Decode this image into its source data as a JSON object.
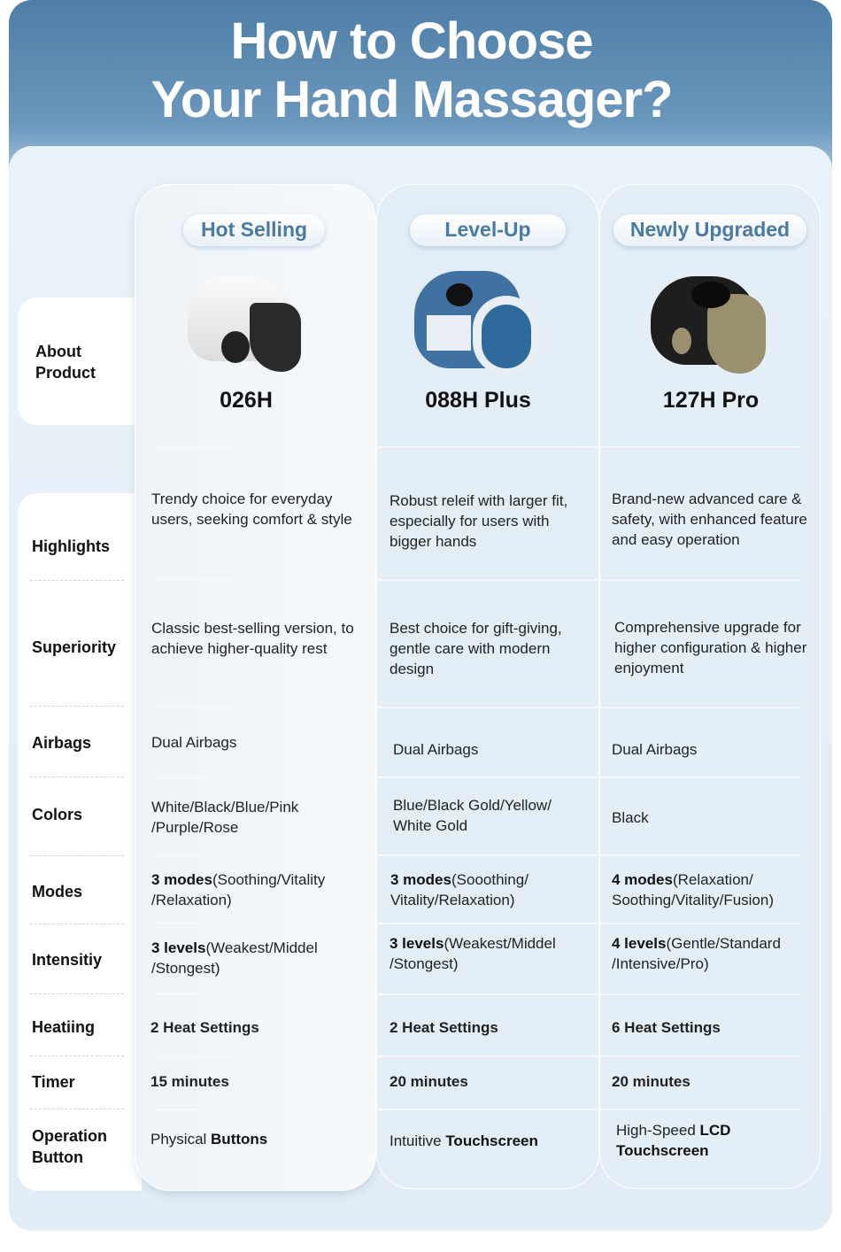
{
  "title": [
    "How to Choose",
    "Your Hand Massager?"
  ],
  "products": [
    {
      "badge": "Hot Selling",
      "model": "026H"
    },
    {
      "badge": "Level-Up",
      "model": "088H Plus"
    },
    {
      "badge": "Newly Upgraded",
      "model": "127H Pro"
    }
  ],
  "row_labels": {
    "about": "About Product",
    "highlights": "Highlights",
    "superiority": "Superiority",
    "airbags": "Airbags",
    "colors": "Colors",
    "modes": "Modes",
    "intensity": "Intensitiy",
    "heating": "Heatiing",
    "timer": "Timer",
    "operation": "Operation Button"
  },
  "cells": {
    "highlights": [
      "Trendy choice for everyday users, seeking comfort & style",
      "Robust releif with larger fit, especially for users with bigger hands",
      "Brand-new advanced care & safety, with enhanced feature and easy operation"
    ],
    "superiority": [
      "Classic best-selling version, to achieve higher-quality rest",
      "Best choice for gift-giving, gentle care with modern design",
      "Comprehensive upgrade for higher configuration & higher enjoyment"
    ],
    "airbags": [
      "Dual Airbags",
      "Dual Airbags",
      "Dual Airbags"
    ],
    "colors": [
      "White/Black/Blue/Pink /Purple/Rose",
      "Blue/Black Gold/Yellow/ White Gold",
      "Black"
    ],
    "modes": [
      {
        "b": "3 modes",
        "t": "(Soothing/Vitality /Relaxation)"
      },
      {
        "b": "3 modes",
        "t": "(Sooothing/ Vitality/Relaxation)"
      },
      {
        "b": "4 modes",
        "t": "(Relaxation/ Soothing/Vitality/Fusion)"
      }
    ],
    "intensity": [
      {
        "b": "3 levels",
        "t": "(Weakest/Middel /Stongest)"
      },
      {
        "b": "3 levels",
        "t": "(Weakest/Middel /Stongest)"
      },
      {
        "b": "4 levels",
        "t": "(Gentle/Standard /Intensive/Pro)"
      }
    ],
    "heating": [
      "2 Heat Settings",
      "2 Heat Settings",
      "6 Heat Settings"
    ],
    "timer": [
      "15 minutes",
      "20 minutes",
      "20 minutes"
    ],
    "operation": [
      {
        "t": "Physical ",
        "b": "Buttons"
      },
      {
        "t": "Intuitive ",
        "b": "Touchscreen"
      },
      {
        "t": "High-Speed ",
        "b": "LCD Touchscreen"
      }
    ]
  },
  "colors": {
    "header": "#5a88b0",
    "badge_text": "#4a7aa2",
    "panel": "#e2edf6"
  }
}
